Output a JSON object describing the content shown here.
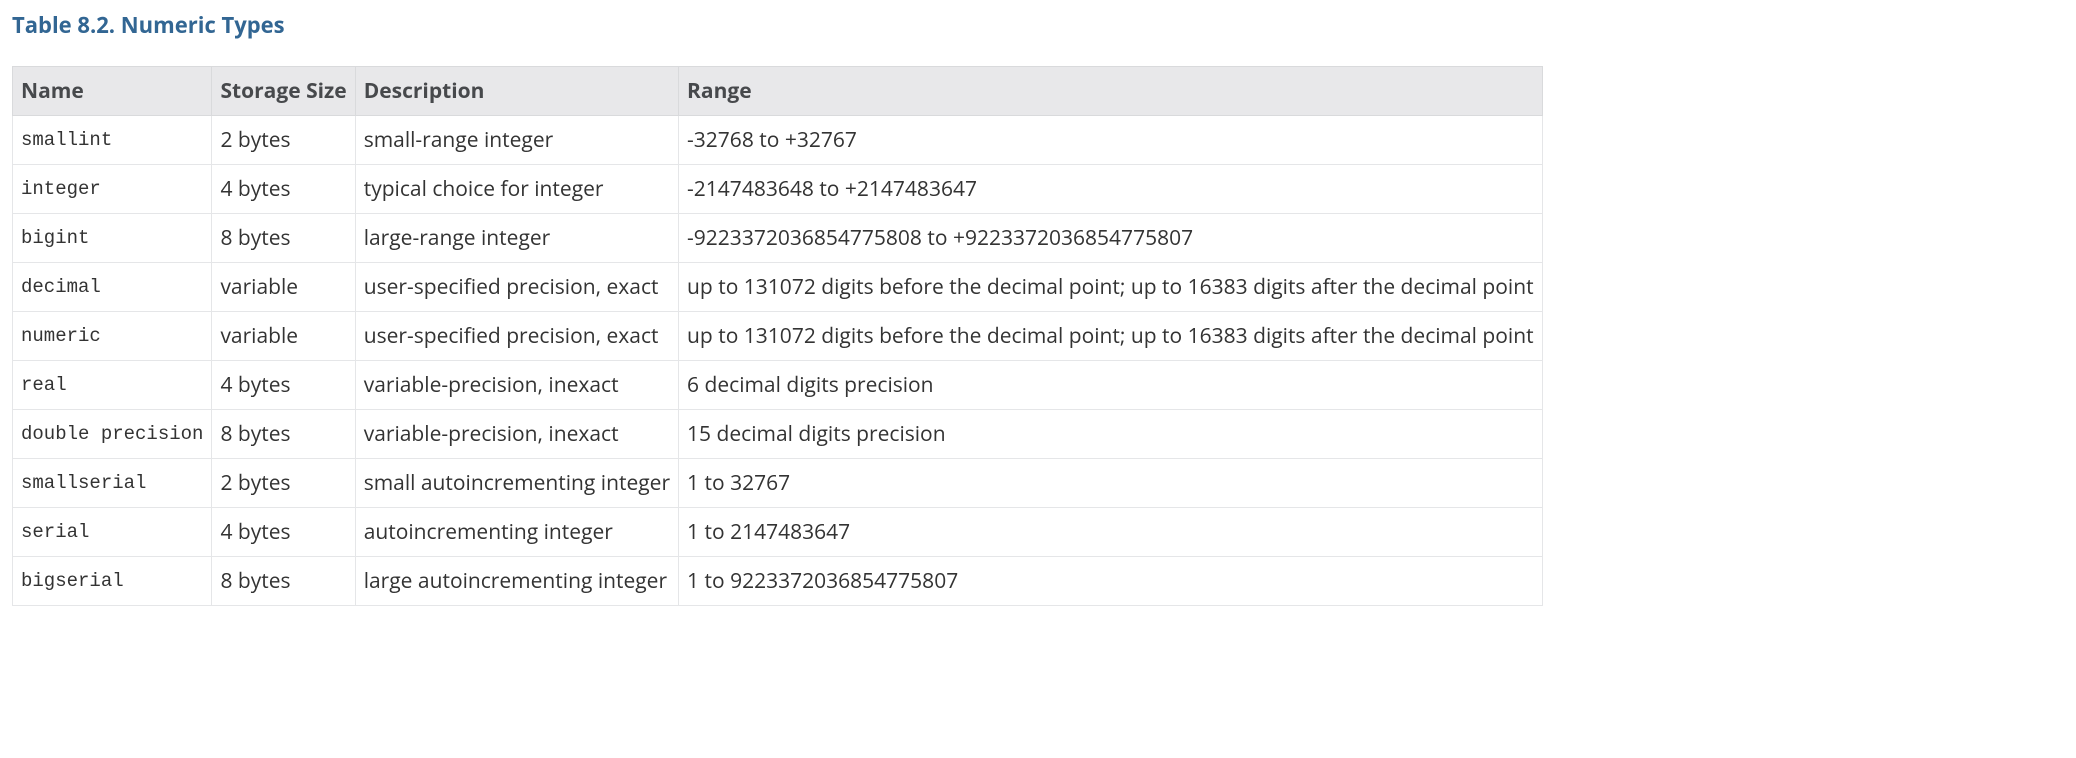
{
  "title": "Table 8.2. Numeric Types",
  "columns": [
    "Name",
    "Storage Size",
    "Description",
    "Range"
  ],
  "rows": [
    {
      "name": "smallint",
      "storage": "2 bytes",
      "description": "small-range integer",
      "range": "-32768 to +32767"
    },
    {
      "name": "integer",
      "storage": "4 bytes",
      "description": "typical choice for integer",
      "range": "-2147483648 to +2147483647"
    },
    {
      "name": "bigint",
      "storage": "8 bytes",
      "description": "large-range integer",
      "range": "-9223372036854775808 to +9223372036854775807"
    },
    {
      "name": "decimal",
      "storage": "variable",
      "description": "user-specified precision, exact",
      "range": "up to 131072 digits before the decimal point; up to 16383 digits after the decimal point"
    },
    {
      "name": "numeric",
      "storage": "variable",
      "description": "user-specified precision, exact",
      "range": "up to 131072 digits before the decimal point; up to 16383 digits after the decimal point"
    },
    {
      "name": "real",
      "storage": "4 bytes",
      "description": "variable-precision, inexact",
      "range": "6 decimal digits precision"
    },
    {
      "name": "double precision",
      "storage": "8 bytes",
      "description": "variable-precision, inexact",
      "range": "15 decimal digits precision"
    },
    {
      "name": "smallserial",
      "storage": "2 bytes",
      "description": "small autoincrementing integer",
      "range": "1 to 32767"
    },
    {
      "name": "serial",
      "storage": "4 bytes",
      "description": "autoincrementing integer",
      "range": "1 to 2147483647"
    },
    {
      "name": "bigserial",
      "storage": "8 bytes",
      "description": "large autoincrementing integer",
      "range": "1 to 9223372036854775807"
    }
  ],
  "style": {
    "title_color": "#326693",
    "header_bg": "#e8e8ea",
    "header_text_color": "#47494c",
    "border_color": "#e5e6e8",
    "body_text_color": "#333333",
    "mono_font": "Menlo, Consolas, Courier New, monospace",
    "body_font": "Open Sans, Helvetica Neue, Helvetica, Arial, sans-serif",
    "title_fontsize": 22,
    "header_fontsize": 21,
    "cell_fontsize": 21,
    "name_fontsize": 19
  }
}
